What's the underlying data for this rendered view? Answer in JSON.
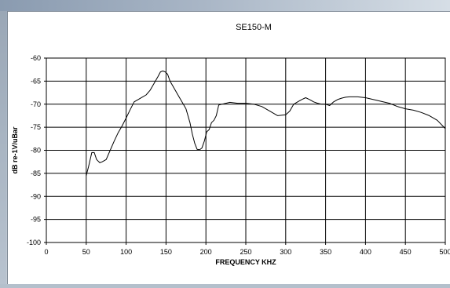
{
  "chart_data": {
    "type": "line",
    "title": "SE150-M",
    "xlabel": "FREQUENCY KHZ",
    "ylabel": "dB re-1V/uBar",
    "xlim": [
      0,
      500
    ],
    "ylim": [
      -100,
      -60
    ],
    "x_ticks": [
      "0",
      "50",
      "100",
      "150",
      "200",
      "250",
      "300",
      "350",
      "400",
      "450",
      "500"
    ],
    "y_ticks": [
      "-60",
      "-65",
      "-70",
      "-75",
      "-80",
      "-85",
      "-90",
      "-95",
      "-100"
    ],
    "grid": true,
    "series": [
      {
        "name": "",
        "x": [
          50,
          53,
          57,
          60,
          63,
          67,
          70,
          75,
          80,
          85,
          90,
          95,
          100,
          105,
          110,
          115,
          120,
          125,
          130,
          135,
          140,
          143,
          146,
          149,
          152,
          155,
          160,
          165,
          170,
          175,
          180,
          183,
          186,
          189,
          192,
          195,
          198,
          201,
          204,
          207,
          210,
          213,
          216,
          220,
          225,
          230,
          240,
          250,
          260,
          270,
          280,
          290,
          300,
          305,
          310,
          315,
          320,
          325,
          330,
          335,
          340,
          345,
          350,
          355,
          360,
          365,
          370,
          375,
          380,
          390,
          400,
          410,
          420,
          430,
          440,
          450,
          460,
          470,
          480,
          490,
          500
        ],
        "y": [
          -85.5,
          -83.5,
          -80.5,
          -80.5,
          -82,
          -82.7,
          -82.5,
          -82,
          -80,
          -78,
          -76.2,
          -74.7,
          -73,
          -71.2,
          -69.5,
          -69,
          -68.5,
          -68,
          -67,
          -65.5,
          -64,
          -63,
          -62.8,
          -63,
          -63.5,
          -65,
          -66.5,
          -68,
          -69.5,
          -71,
          -74,
          -76.5,
          -78.5,
          -79.8,
          -79.9,
          -79.5,
          -78,
          -76,
          -75.5,
          -74,
          -73.5,
          -72.5,
          -70.2,
          -70,
          -69.8,
          -69.6,
          -69.8,
          -69.8,
          -70,
          -70.5,
          -71.5,
          -72.5,
          -72.3,
          -71.5,
          -70,
          -69.5,
          -69,
          -68.6,
          -69,
          -69.5,
          -69.8,
          -70,
          -70,
          -70.3,
          -69.5,
          -69,
          -68.7,
          -68.5,
          -68.4,
          -68.4,
          -68.6,
          -69,
          -69.4,
          -69.8,
          -70.5,
          -71,
          -71.3,
          -71.8,
          -72.5,
          -73.5,
          -75.3
        ]
      }
    ]
  }
}
